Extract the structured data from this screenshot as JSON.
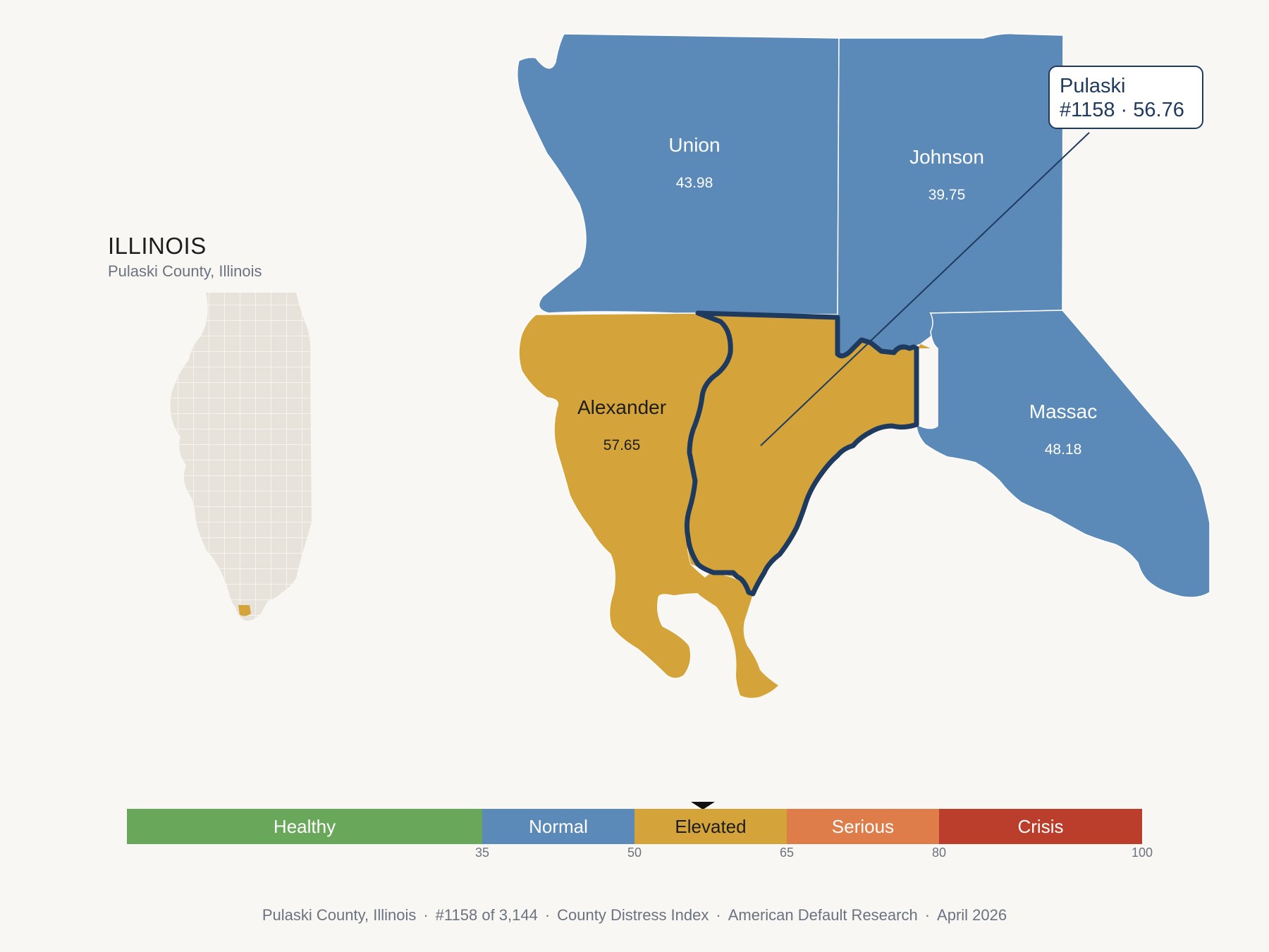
{
  "inset": {
    "title": "ILLINOIS",
    "subtitle": "Pulaski County, Illinois"
  },
  "counties": [
    {
      "name": "Union",
      "value": "43.98",
      "category": "Normal",
      "color": "#5b8ab9"
    },
    {
      "name": "Johnson",
      "value": "39.75",
      "category": "Normal",
      "color": "#5b8ab9"
    },
    {
      "name": "Alexander",
      "value": "57.65",
      "category": "Elevated",
      "color": "#d4a43b"
    },
    {
      "name": "Massac",
      "value": "48.18",
      "category": "Normal",
      "color": "#5b8ab9"
    },
    {
      "name": "Pulaski",
      "value": "56.76",
      "category": "Elevated",
      "color": "#d4a43b",
      "highlighted": true
    }
  ],
  "callout": {
    "county": "Pulaski",
    "detail": "#1158 · 56.76"
  },
  "scale": {
    "segments": [
      {
        "label": "Healthy",
        "from": 0,
        "to": 35,
        "color": "#69a85a"
      },
      {
        "label": "Normal",
        "from": 35,
        "to": 50,
        "color": "#5b8ab9"
      },
      {
        "label": "Elevated",
        "from": 50,
        "to": 65,
        "color": "#d4a43b"
      },
      {
        "label": "Serious",
        "from": 65,
        "to": 80,
        "color": "#de7c4a"
      },
      {
        "label": "Crisis",
        "from": 80,
        "to": 100,
        "color": "#bb3d2c"
      }
    ],
    "ticks": [
      "35",
      "50",
      "65",
      "80",
      "100"
    ],
    "marker_value": 56.76
  },
  "footer": {
    "place": "Pulaski County, Illinois",
    "rank": "#1158 of 3,144",
    "index": "County Distress Index",
    "org": "American Default Research",
    "date": "April 2026"
  },
  "colors": {
    "background": "#f9f7f3",
    "highlight_outline": "#1f3a5f",
    "inset_fill": "#e8e3da"
  }
}
